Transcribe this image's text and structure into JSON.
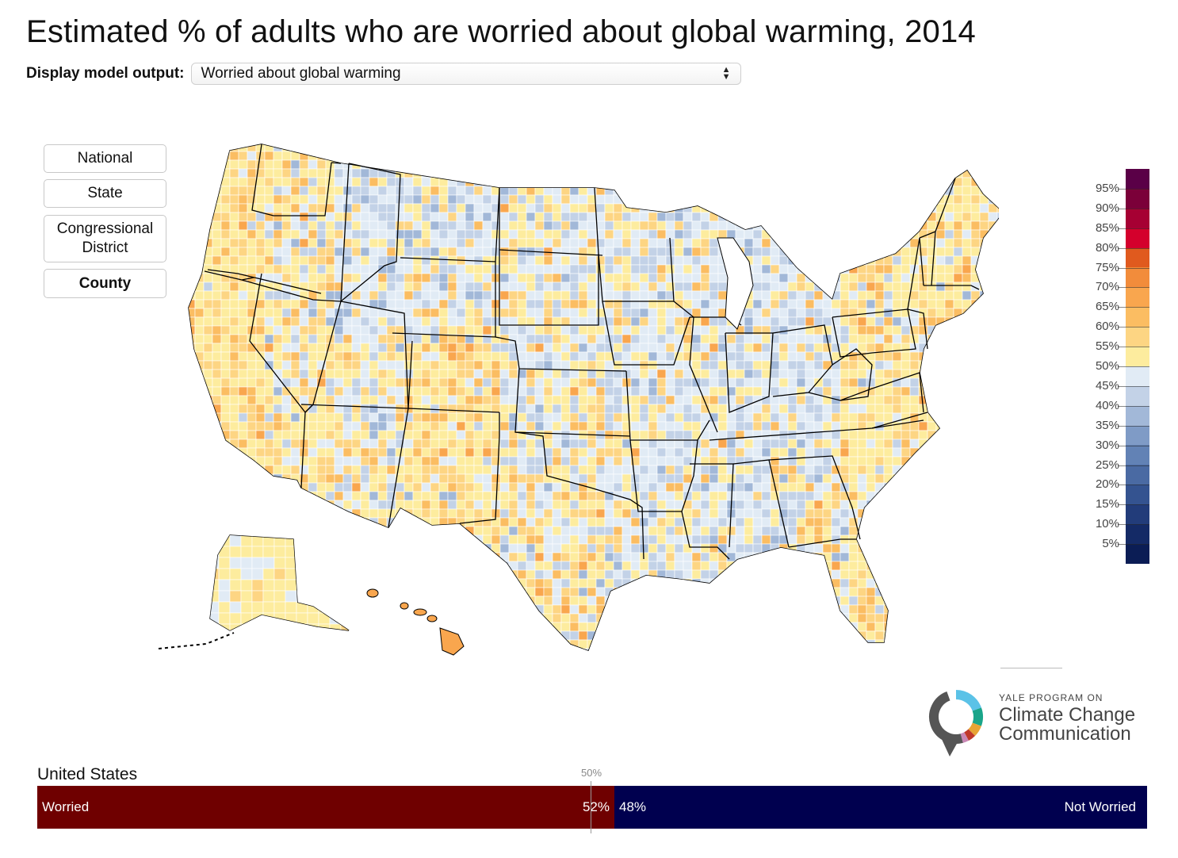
{
  "title": "Estimated % of adults who are worried about global warming, 2014",
  "model_output": {
    "label": "Display model output:",
    "selected": "Worried about global warming"
  },
  "geo_buttons": [
    {
      "label": "National"
    },
    {
      "label": "State"
    },
    {
      "label": "Congressional\nDistrict"
    },
    {
      "label": "County",
      "active": true
    }
  ],
  "legend": {
    "labels": [
      "95%",
      "90%",
      "85%",
      "80%",
      "75%",
      "70%",
      "65%",
      "60%",
      "55%",
      "50%",
      "45%",
      "40%",
      "35%",
      "30%",
      "25%",
      "20%",
      "15%",
      "10%",
      "5%"
    ],
    "colors": [
      "#5a0047",
      "#7b0039",
      "#a60033",
      "#d4002c",
      "#e05a1e",
      "#f28c3b",
      "#f9a64e",
      "#fbbd62",
      "#fdd583",
      "#fdec9e",
      "#e1ebf5",
      "#c3d2e7",
      "#a2b8d8",
      "#7f9bc6",
      "#6282b5",
      "#4a6aa3",
      "#345390",
      "#223c7a",
      "#142a66",
      "#0b1d55"
    ]
  },
  "map_palette": {
    "warm": [
      "#fdec9e",
      "#fdd583",
      "#fbbd62",
      "#f9a64e"
    ],
    "cool": [
      "#e1ebf5",
      "#c3d2e7",
      "#a2b8d8"
    ],
    "border": "#000000"
  },
  "logo": {
    "small": "YALE PROGRAM ON",
    "line1": "Climate Change",
    "line2": "Communication",
    "ring_colors": [
      "#5bc2e7",
      "#1aa58a",
      "#e7a435",
      "#c0392b",
      "#c987b5",
      "#555555"
    ]
  },
  "bar": {
    "region": "United States",
    "midpoint_label": "50%",
    "worried_label": "Worried",
    "worried_pct_text": "52%",
    "worried_value": 52,
    "not_worried_label": "Not Worried",
    "not_worried_pct_text": "48%",
    "worried_color": "#6f0000",
    "not_worried_color": "#00004f"
  }
}
